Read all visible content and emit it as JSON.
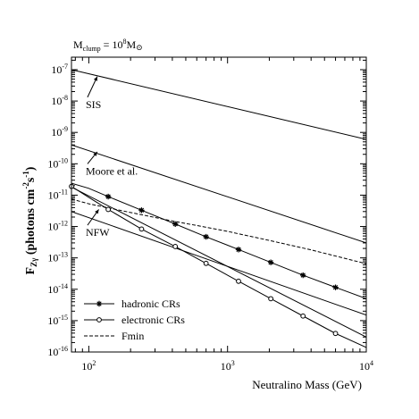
{
  "chart_data": {
    "type": "line",
    "title_prefix": "M",
    "title_sub": "clump",
    "title_eq": " = 10",
    "title_exp": "8",
    "title_unit": "M",
    "title_sun": "⊙",
    "xlabel": "Neutralino Mass (GeV)",
    "ylabel": {
      "main": "F",
      "sub": "Zγ",
      "rest": " (photons cm",
      "sup1": "-2",
      "mid": "s",
      "sup2": "-1",
      "end": ")"
    },
    "xscale": "log",
    "yscale": "log",
    "xlim": [
      75,
      10000
    ],
    "ylim": [
      1e-16,
      2.5e-07
    ],
    "x_ticks": [
      {
        "base": "10",
        "exp": "2",
        "value": 100
      },
      {
        "base": "10",
        "exp": "3",
        "value": 1000
      },
      {
        "base": "10",
        "exp": "4",
        "value": 10000
      }
    ],
    "y_ticks": [
      {
        "base": "10",
        "exp": "-7",
        "value": 1e-07
      },
      {
        "base": "10",
        "exp": "-8",
        "value": 1e-08
      },
      {
        "base": "10",
        "exp": "-9",
        "value": 1e-09
      },
      {
        "base": "10",
        "exp": "-10",
        "value": 1e-10
      },
      {
        "base": "10",
        "exp": "-11",
        "value": 1e-11
      },
      {
        "base": "10",
        "exp": "-12",
        "value": 1e-12
      },
      {
        "base": "10",
        "exp": "-13",
        "value": 1e-13
      },
      {
        "base": "10",
        "exp": "-14",
        "value": 1e-14
      },
      {
        "base": "10",
        "exp": "-15",
        "value": 1e-15
      },
      {
        "base": "10",
        "exp": "-16",
        "value": 1e-16
      }
    ],
    "curves": [
      {
        "x": [
          75,
          10000
        ],
        "y": [
          1e-07,
          6e-10
        ],
        "style": "solid"
      },
      {
        "x": [
          75,
          10000
        ],
        "y": [
          4e-10,
          3e-13
        ],
        "style": "solid"
      },
      {
        "x": [
          75,
          10000
        ],
        "y": [
          1.8e-11,
          3e-16
        ],
        "style": "solid"
      },
      {
        "x": [
          75,
          10000
        ],
        "y": [
          3e-12,
          1.5e-15
        ],
        "style": "solid"
      }
    ],
    "annotations": [
      {
        "text": "SIS",
        "tx": 95,
        "ty": 6e-09,
        "ax": 115,
        "ay": 6e-08
      },
      {
        "text": "Moore et al.",
        "tx": 95,
        "ty": 4.5e-11,
        "ax": 115,
        "ay": 2.4e-10
      },
      {
        "text": "NFW",
        "tx": 95,
        "ty": 5e-13,
        "ax": 118,
        "ay": 3.5e-12
      }
    ],
    "series": [
      {
        "name": "hadronic CRs",
        "style": "solid",
        "marker": "star",
        "x": [
          75,
          100,
          138,
          240,
          420,
          700,
          1200,
          2050,
          3500,
          6000,
          10000
        ],
        "y": [
          2.4e-11,
          1.65e-11,
          9e-12,
          3.3e-12,
          1.2e-12,
          4.7e-13,
          1.85e-13,
          7.2e-14,
          2.8e-14,
          1.15e-14,
          5e-15
        ],
        "marker_x": [
          138,
          240,
          420,
          700,
          1200,
          2050,
          3500,
          6000
        ]
      },
      {
        "name": "electronic CRs",
        "style": "solid",
        "marker": "circle",
        "x": [
          75,
          100,
          138,
          240,
          420,
          700,
          1200,
          2050,
          3500,
          6000,
          10000
        ],
        "y": [
          1.9e-11,
          8.5e-12,
          3.5e-12,
          8.3e-13,
          2.3e-13,
          6.7e-14,
          1.8e-14,
          5e-15,
          1.4e-15,
          3.9e-16,
          1.4e-16
        ],
        "marker_x": [
          75,
          138,
          240,
          420,
          700,
          1200,
          2050,
          3500,
          6000
        ]
      },
      {
        "name": "Fmin",
        "style": "dashed",
        "marker": "none",
        "x": [
          75,
          100,
          200,
          400,
          700,
          1000,
          2000,
          4000,
          10000
        ],
        "y": [
          7.5e-12,
          5.3e-12,
          2.8e-12,
          1.5e-12,
          9.5e-13,
          7e-13,
          3.6e-13,
          1.8e-13,
          6.5e-14
        ],
        "marker_x": []
      }
    ],
    "legend_position": "bottom-left"
  }
}
